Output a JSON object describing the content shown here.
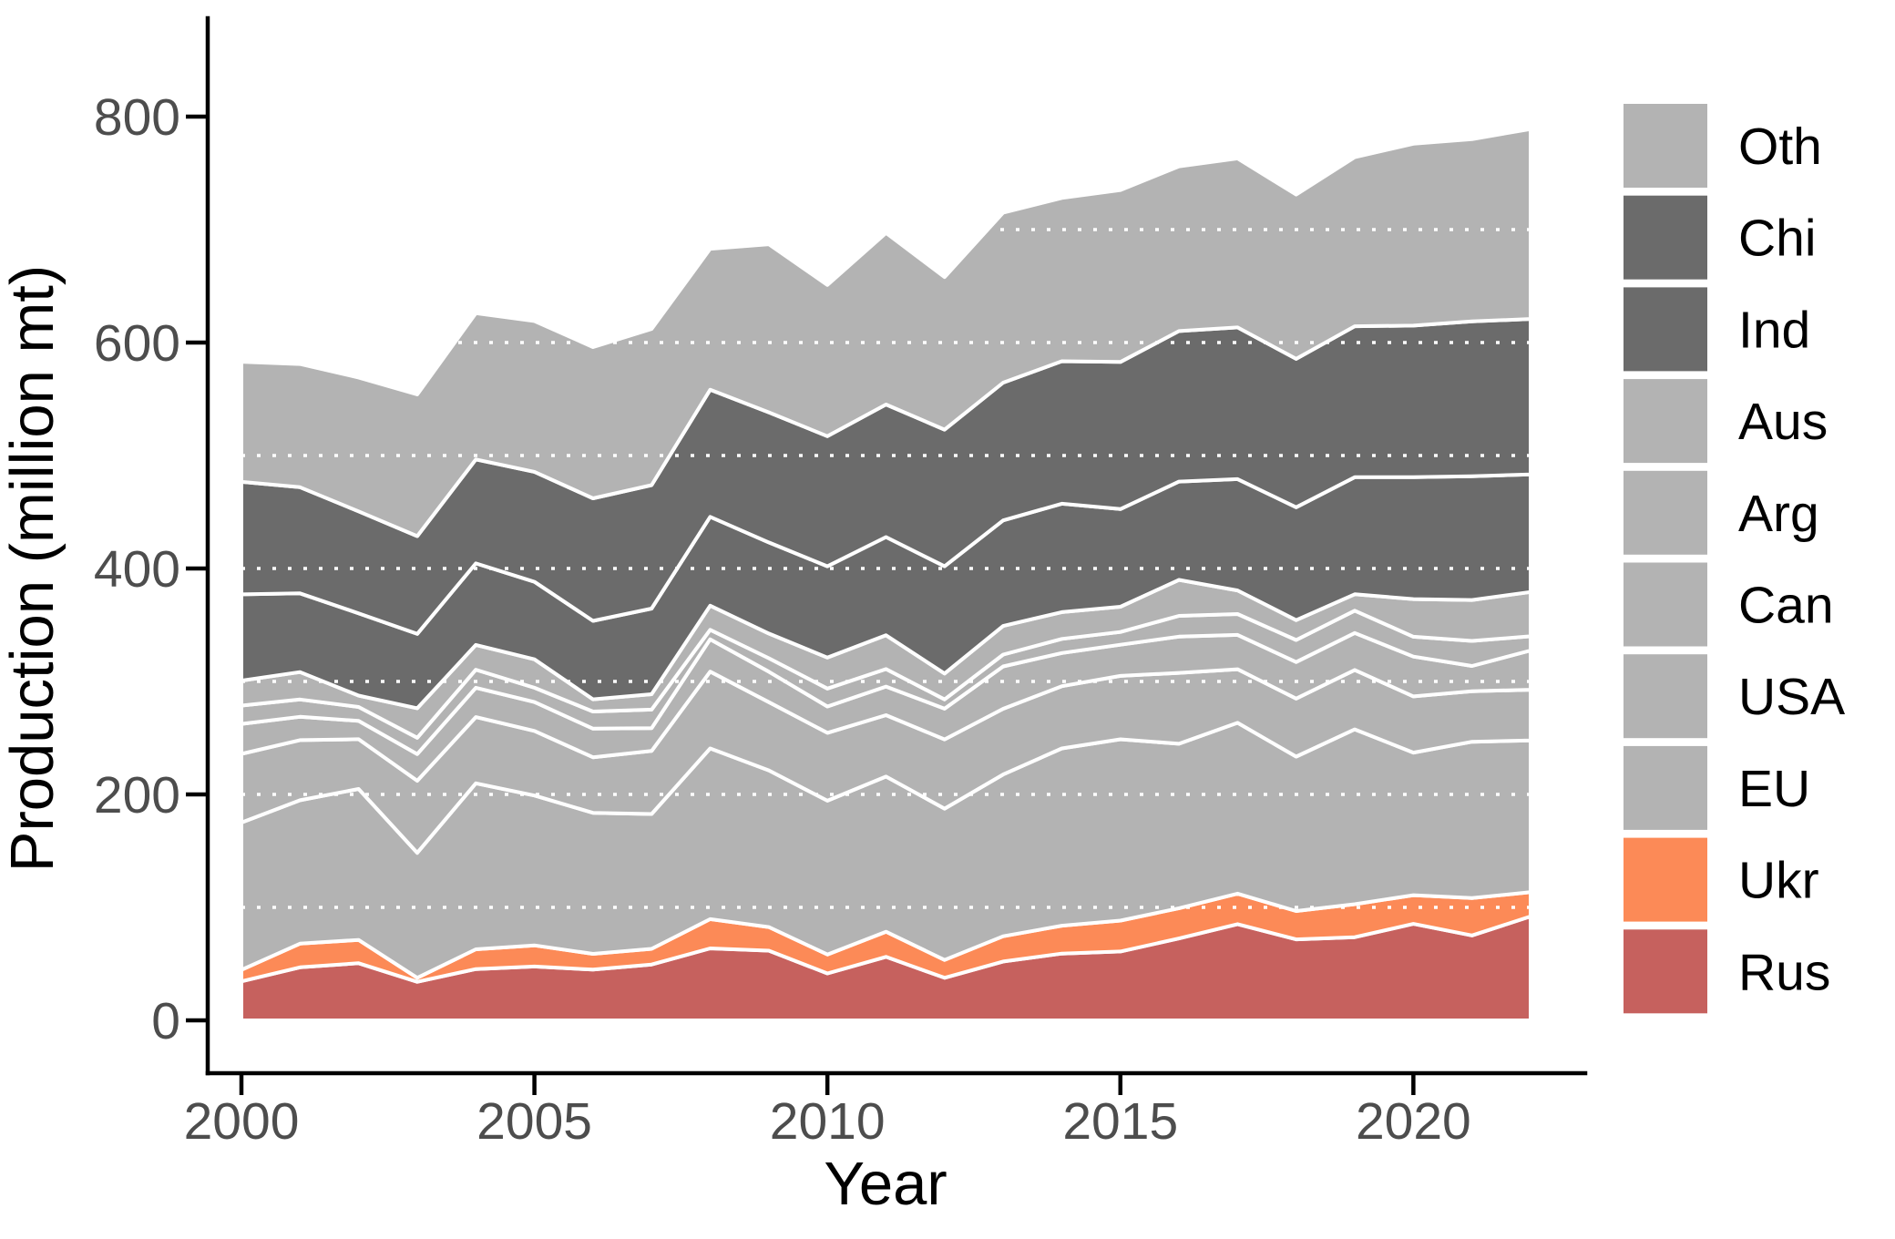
{
  "chart_data": {
    "type": "area",
    "stacked": true,
    "title": "",
    "xlabel": "Year",
    "ylabel": "Production (million mt)",
    "x": [
      2000,
      2001,
      2002,
      2003,
      2004,
      2005,
      2006,
      2007,
      2008,
      2009,
      2010,
      2011,
      2012,
      2013,
      2014,
      2015,
      2016,
      2017,
      2018,
      2019,
      2020,
      2021,
      2022
    ],
    "xlim": [
      2000,
      2022
    ],
    "ylim": [
      0,
      800
    ],
    "yticks": [
      0,
      200,
      400,
      600,
      800
    ],
    "xticks": [
      2000,
      2005,
      2010,
      2015,
      2020
    ],
    "gridlines": [
      100,
      200,
      300,
      400,
      500,
      600,
      700
    ],
    "grid_style": "white dotted horizontal lines drawn over the areas",
    "band_outline_color": "#ffffff",
    "series": [
      {
        "name": "Rus",
        "color": "#c6615e",
        "values": [
          34.5,
          46.9,
          50.6,
          34.1,
          45.4,
          47.7,
          44.9,
          49.4,
          63.7,
          61.7,
          41.5,
          56.2,
          37.7,
          52.1,
          59.1,
          61.0,
          72.5,
          85.2,
          71.7,
          73.6,
          85.4,
          75.2,
          92.0
        ]
      },
      {
        "name": "Ukr",
        "color": "#fc8a57",
        "values": [
          10.2,
          21.0,
          20.6,
          3.6,
          17.5,
          18.7,
          14.0,
          13.9,
          25.9,
          20.9,
          16.8,
          22.3,
          15.8,
          22.3,
          24.7,
          27.3,
          26.8,
          27.0,
          25.1,
          29.2,
          25.4,
          33.0,
          21.5
        ]
      },
      {
        "name": "EU",
        "color": "#b3b3b3",
        "values": [
          130.4,
          126.9,
          133.6,
          110.6,
          146.9,
          132.6,
          124.8,
          119.4,
          151.1,
          138.7,
          136.1,
          137.3,
          133.9,
          143.3,
          156.9,
          160.5,
          145.5,
          151.2,
          136.7,
          154.8,
          126.2,
          138.4,
          134.3
        ]
      },
      {
        "name": "USA",
        "color": "#b3b3b3",
        "values": [
          60.8,
          53.3,
          44.1,
          63.8,
          58.7,
          57.2,
          49.2,
          55.8,
          68.0,
          60.4,
          60.1,
          54.4,
          61.3,
          58.1,
          55.1,
          56.1,
          62.8,
          47.4,
          51.3,
          52.6,
          49.8,
          44.8,
          44.9
        ]
      },
      {
        "name": "Can",
        "color": "#b3b3b3",
        "values": [
          26.5,
          20.6,
          16.2,
          23.6,
          25.9,
          25.6,
          25.3,
          20.1,
          28.6,
          26.9,
          23.3,
          25.3,
          27.2,
          37.5,
          29.4,
          27.6,
          32.1,
          30.4,
          32.4,
          32.7,
          35.2,
          22.3,
          34.7
        ]
      },
      {
        "name": "Arg",
        "color": "#b3b3b3",
        "values": [
          16.2,
          15.3,
          12.3,
          14.5,
          16.0,
          12.6,
          15.2,
          16.5,
          8.4,
          12.0,
          15.9,
          15.5,
          8.2,
          10.5,
          12.5,
          11.3,
          18.4,
          18.5,
          19.5,
          19.8,
          17.6,
          22.2,
          12.6
        ]
      },
      {
        "name": "Aus",
        "color": "#b3b3b3",
        "values": [
          22.1,
          24.3,
          10.1,
          26.1,
          21.9,
          25.2,
          10.8,
          13.6,
          21.4,
          21.8,
          27.4,
          29.9,
          22.9,
          25.3,
          23.7,
          22.3,
          31.8,
          20.9,
          17.6,
          14.5,
          33.3,
          36.2,
          39.2
        ]
      },
      {
        "name": "Ind",
        "color": "#6b6b6b",
        "values": [
          76.4,
          69.7,
          72.8,
          65.8,
          72.2,
          68.6,
          69.4,
          75.8,
          78.6,
          80.7,
          80.8,
          86.9,
          94.9,
          93.5,
          95.9,
          86.5,
          87.0,
          98.5,
          99.9,
          103.6,
          107.9,
          109.6,
          104.0
        ]
      },
      {
        "name": "Chi",
        "color": "#6b6b6b",
        "values": [
          99.6,
          93.9,
          90.3,
          86.5,
          92.0,
          97.4,
          108.5,
          109.3,
          112.5,
          115.1,
          115.2,
          117.4,
          121.0,
          121.9,
          126.2,
          130.2,
          133.3,
          134.3,
          131.4,
          133.6,
          134.2,
          137.0,
          137.7
        ]
      },
      {
        "name": "Oth",
        "color": "#b3b3b3",
        "values": [
          106.3,
          109.1,
          118.4,
          125.4,
          129.5,
          133.4,
          133.9,
          138.2,
          124.8,
          148.8,
          133.9,
          151.8,
          135.1,
          150.5,
          144.5,
          152.2,
          145.8,
          149.6,
          145.4,
          149.6,
          161.0,
          161.3,
          168.1
        ]
      }
    ],
    "legend": {
      "position": "right",
      "items": [
        {
          "label": "Oth",
          "color": "#b3b3b3"
        },
        {
          "label": "Chi",
          "color": "#6b6b6b"
        },
        {
          "label": "Ind",
          "color": "#6b6b6b"
        },
        {
          "label": "Aus",
          "color": "#b3b3b3"
        },
        {
          "label": "Arg",
          "color": "#b3b3b3"
        },
        {
          "label": "Can",
          "color": "#b3b3b3"
        },
        {
          "label": "USA",
          "color": "#b3b3b3"
        },
        {
          "label": "EU",
          "color": "#b3b3b3"
        },
        {
          "label": "Ukr",
          "color": "#fc8a57"
        },
        {
          "label": "Rus",
          "color": "#c6615e"
        }
      ]
    }
  }
}
